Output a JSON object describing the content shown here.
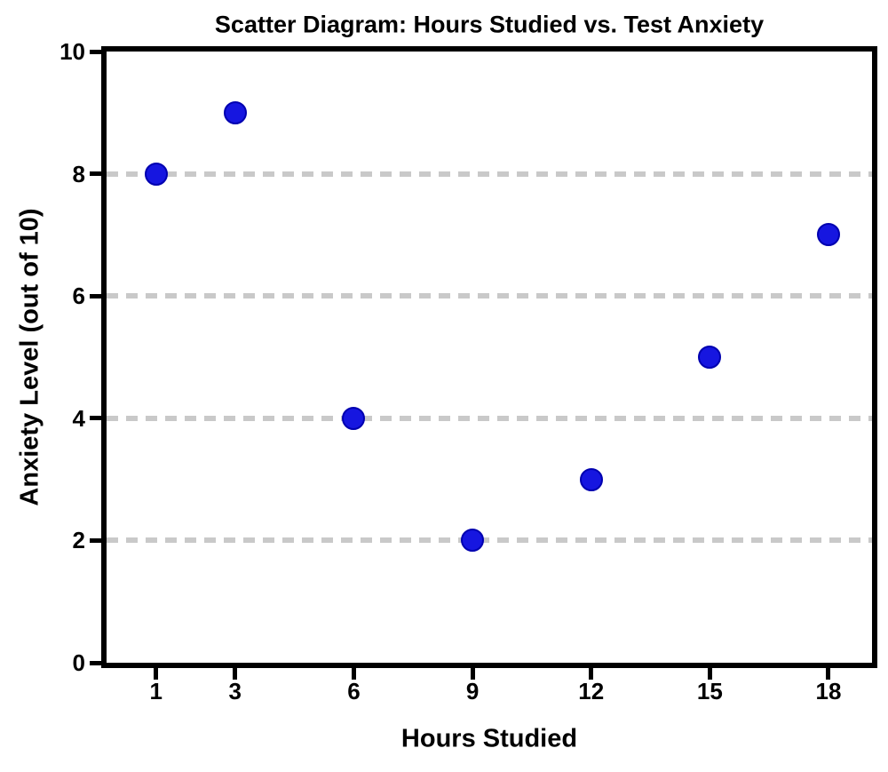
{
  "chart_data": {
    "type": "scatter",
    "title": "Scatter Diagram: Hours Studied vs. Test Anxiety",
    "xlabel": "Hours Studied",
    "ylabel": "Anxiety Level (out of 10)",
    "x": [
      1,
      3,
      6,
      9,
      12,
      15,
      18
    ],
    "y": [
      8,
      9,
      4,
      2,
      3,
      5,
      7
    ],
    "x_ticks": [
      "1",
      "3",
      "6",
      "9",
      "12",
      "15",
      "18"
    ],
    "x_tick_values": [
      1,
      3,
      6,
      9,
      12,
      15,
      18
    ],
    "y_ticks": [
      "0",
      "2",
      "4",
      "6",
      "8",
      "10"
    ],
    "y_tick_values": [
      0,
      2,
      4,
      6,
      8,
      10
    ],
    "xlim": [
      -0.25,
      19.1
    ],
    "ylim": [
      0,
      10
    ],
    "gridlines_y": [
      2,
      4,
      6,
      8
    ],
    "grid_style": "dashed",
    "legend": "none",
    "point_color": "#1616e0",
    "point_edge_color": "#0000b0",
    "grid_color": "#c9c9c9",
    "axis_color": "#000000",
    "background_color": "#ffffff"
  }
}
